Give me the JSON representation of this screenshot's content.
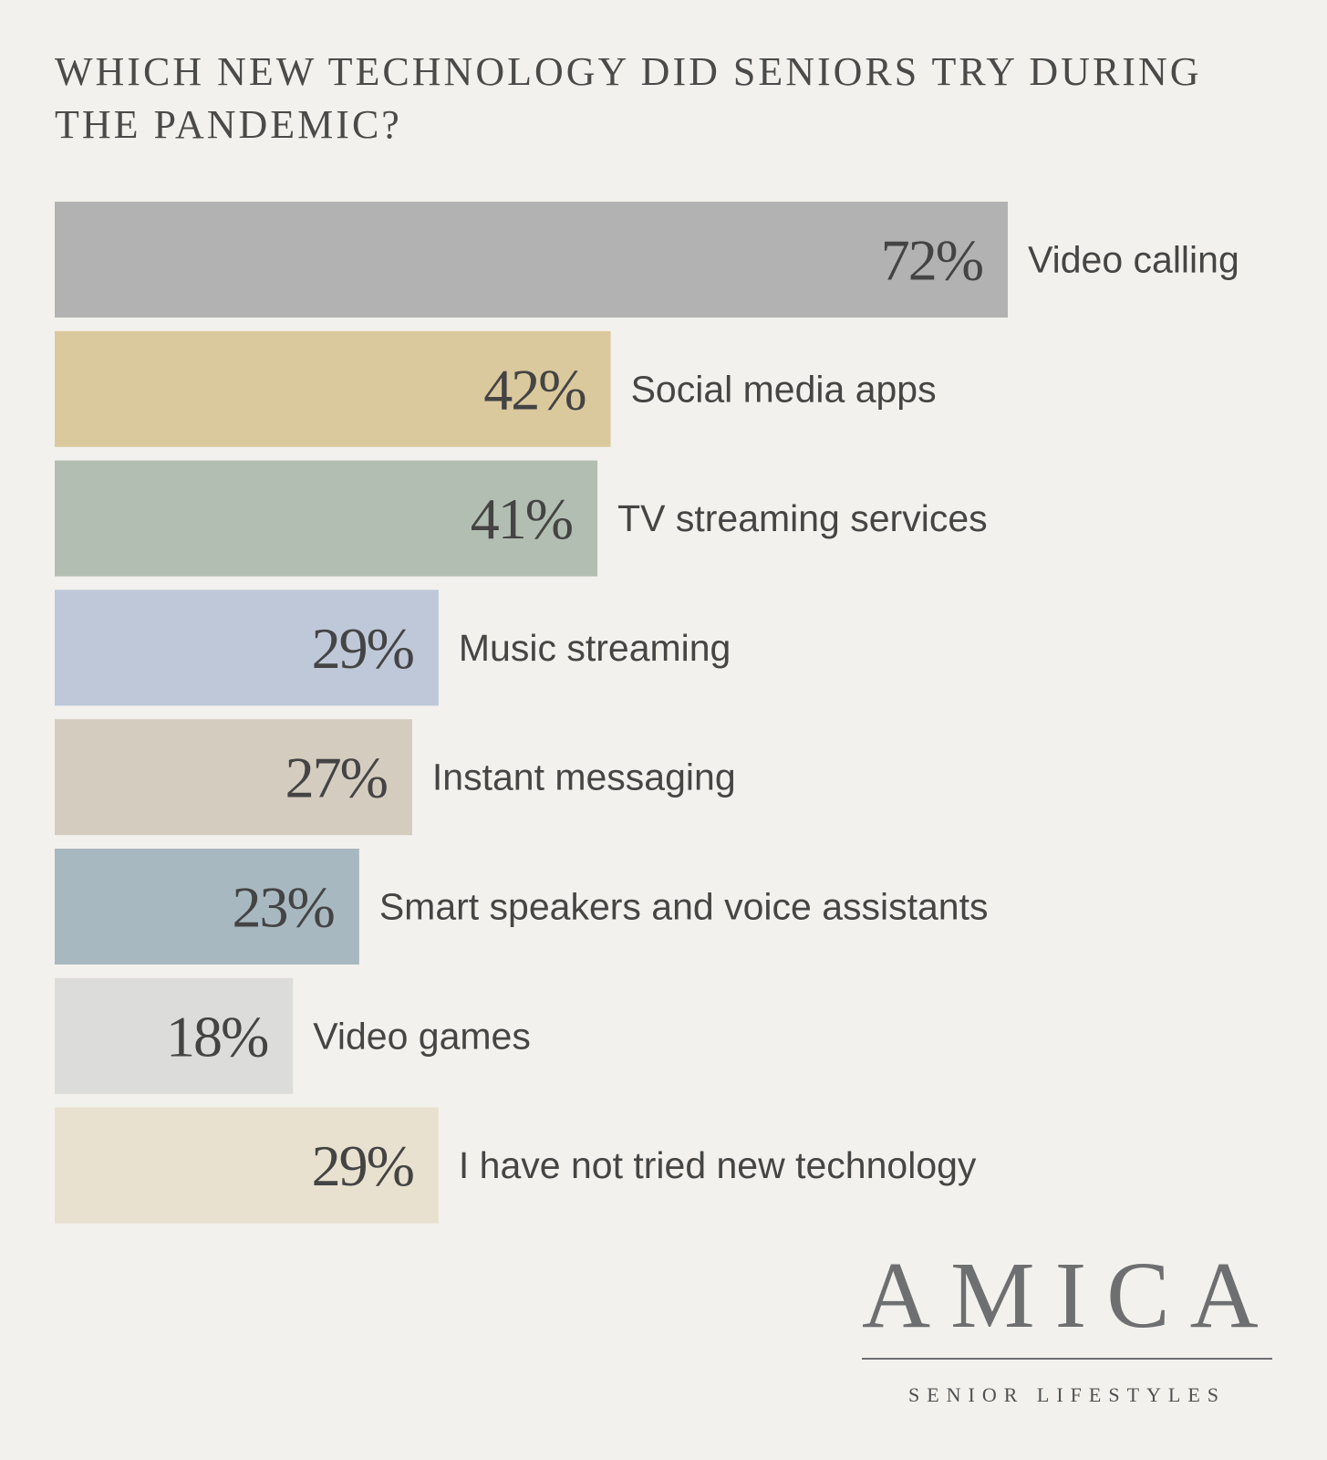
{
  "chart_data": {
    "type": "bar",
    "orientation": "horizontal",
    "title": "WHICH NEW TECHNOLOGY DID SENIORS TRY DURING THE PANDEMIC?",
    "categories": [
      "Video calling",
      "Social media apps",
      "TV streaming services",
      "Music streaming",
      "Instant messaging",
      "Smart speakers and voice assistants",
      "Video games",
      "I have not tried new technology"
    ],
    "values": [
      72,
      42,
      41,
      29,
      27,
      23,
      18,
      29
    ],
    "value_labels": [
      "72%",
      "42%",
      "41%",
      "29%",
      "27%",
      "23%",
      "18%",
      "29%"
    ],
    "colors": [
      "#b1b2b1",
      "#dbc99e",
      "#b2beb1",
      "#bec8d8",
      "#d4ccbe",
      "#a8b8c1",
      "#dcdcdb",
      "#e9e1cf"
    ],
    "xlabel": "",
    "ylabel": "",
    "xlim": [
      0,
      72
    ],
    "grid": false
  },
  "logo": {
    "word": "AMICA",
    "tagline": "SENIOR LIFESTYLES"
  }
}
